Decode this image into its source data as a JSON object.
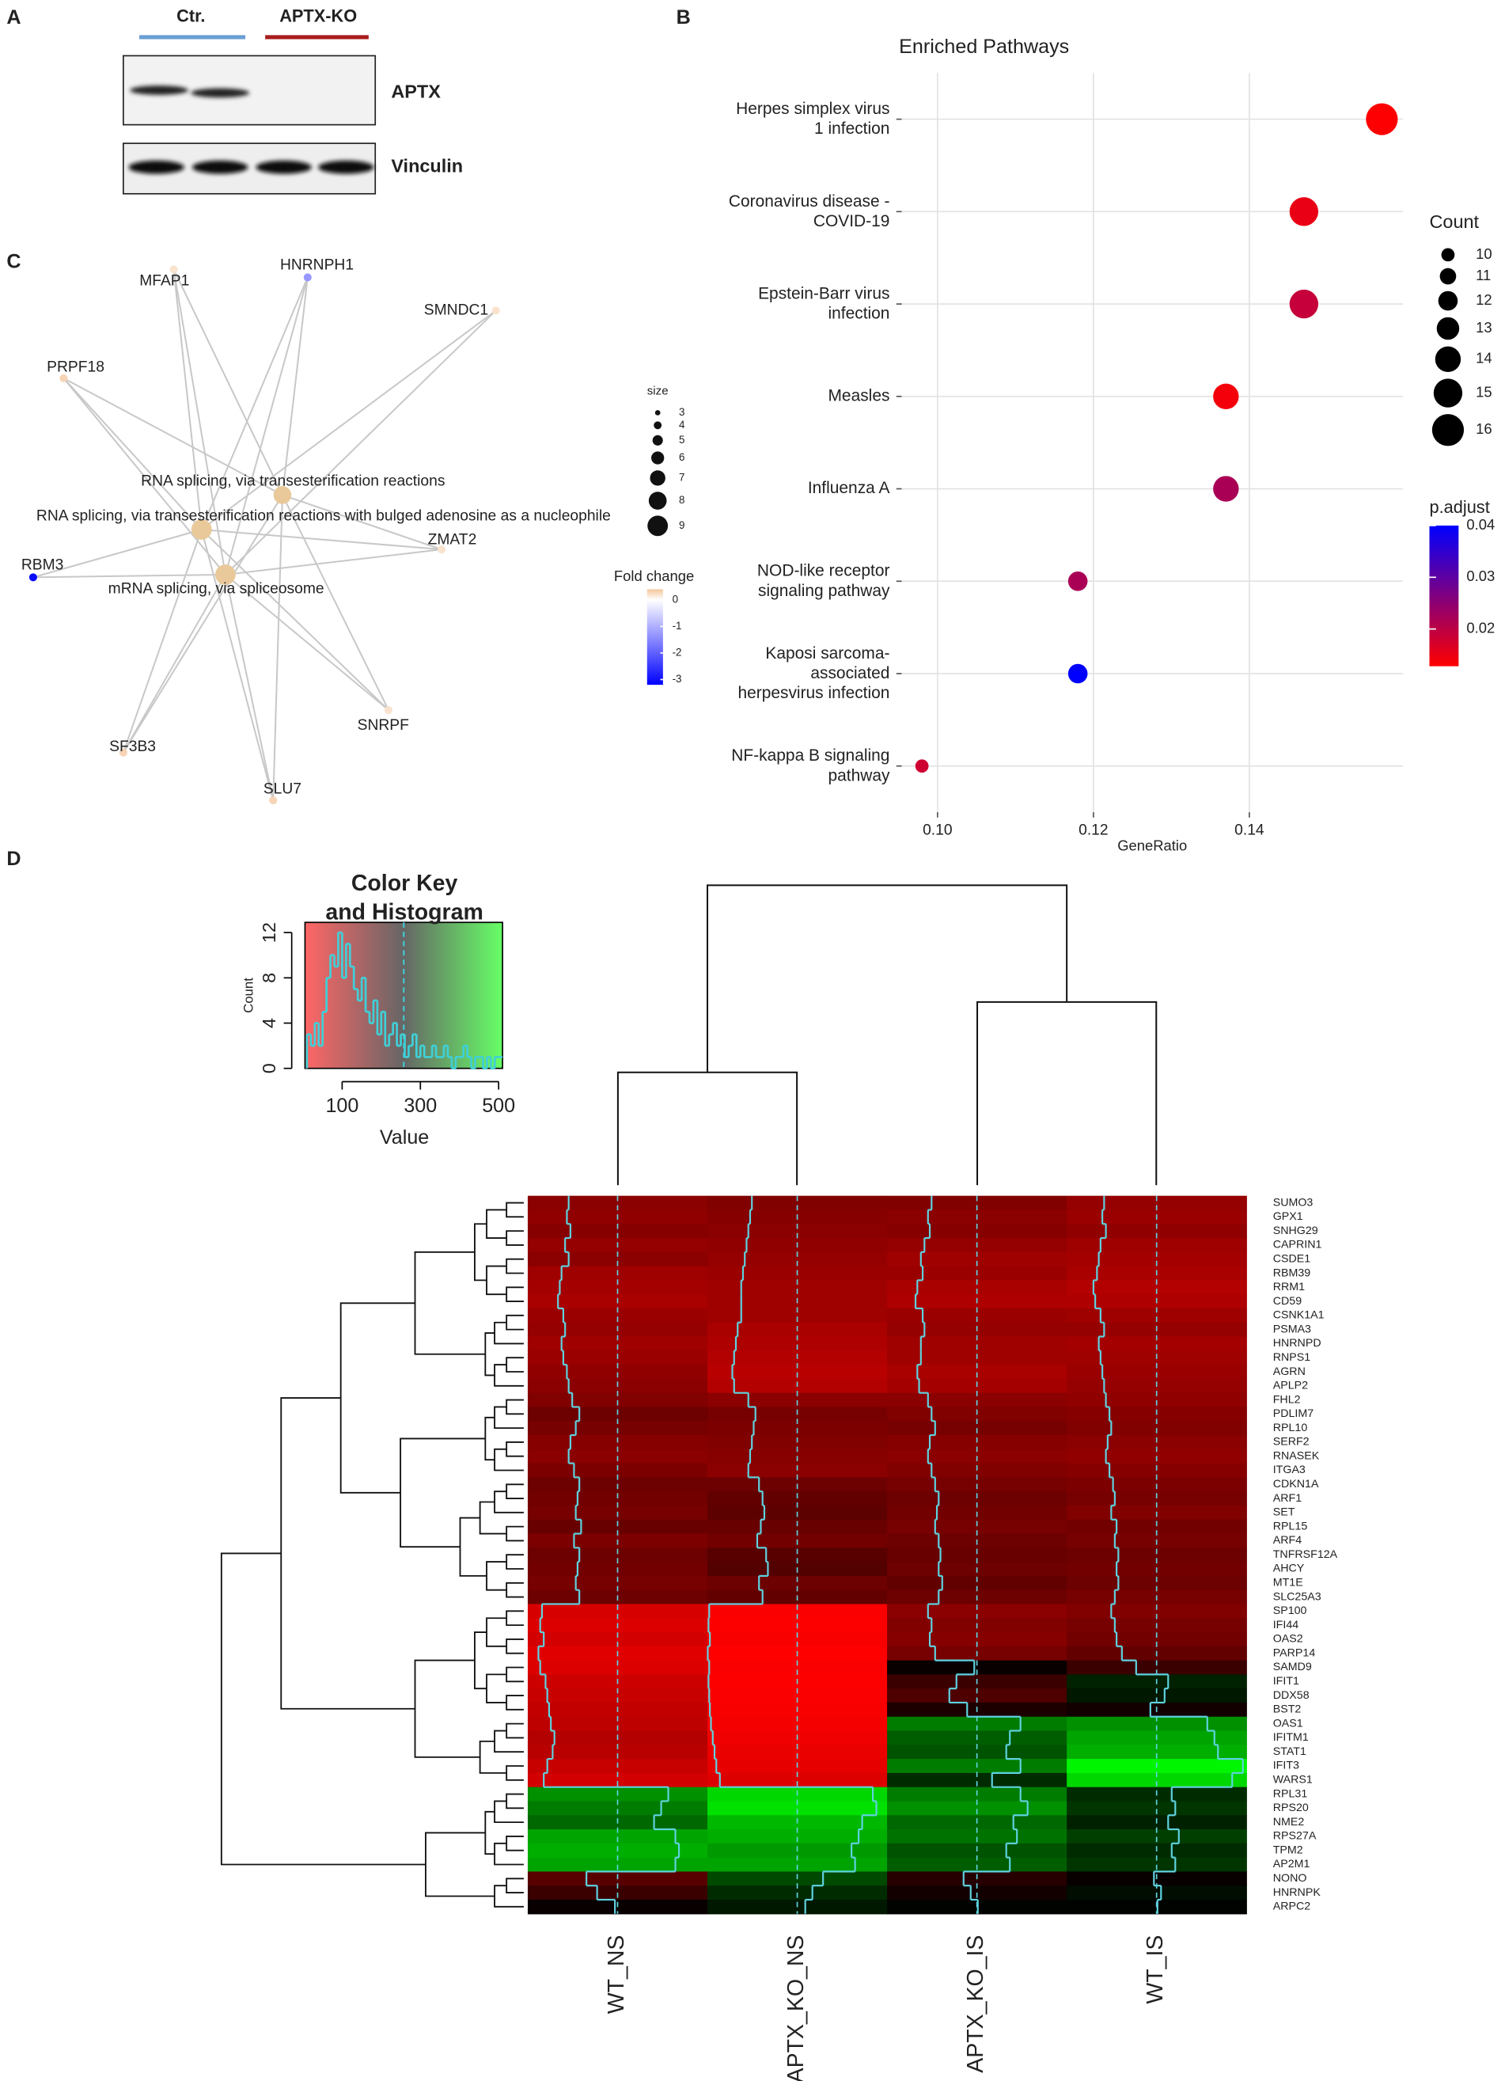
{
  "panel_labels": [
    "A",
    "B",
    "C",
    "D"
  ],
  "western_blot": {
    "groups": [
      "Ctr.",
      "APTX-KO"
    ],
    "proteins": [
      "APTX",
      "Vinculin"
    ]
  },
  "network": {
    "term_color": "#e9c99a",
    "terms": [
      {
        "label": "RNA splicing, via transesterification reactions",
        "size": 8
      },
      {
        "label": "RNA splicing, via transesterification reactions with bulged adenosine as a nucleophile",
        "size": 9
      },
      {
        "label": "mRNA splicing, via spliceosome",
        "size": 9
      }
    ],
    "genes": [
      {
        "label": "MFAP1",
        "fold_change": 0.2
      },
      {
        "label": "HNRNPH1",
        "fold_change": -1.3
      },
      {
        "label": "SMNDC1",
        "fold_change": 0.2
      },
      {
        "label": "PRPF18",
        "fold_change": 0.3
      },
      {
        "label": "RBM3",
        "fold_change": -3.1
      },
      {
        "label": "ZMAT2",
        "fold_change": 0.2
      },
      {
        "label": "SNRPF",
        "fold_change": 0.2
      },
      {
        "label": "SF3B3",
        "fold_change": 0.3
      },
      {
        "label": "SLU7",
        "fold_change": 0.3
      }
    ],
    "size_legend": {
      "title": "size",
      "values": [
        3,
        4,
        5,
        6,
        7,
        8,
        9
      ]
    },
    "fold_legend": {
      "title": "Fold change",
      "lim": [
        -3.2,
        0.4
      ],
      "ticks": [
        0,
        -1,
        -2,
        -3
      ],
      "colors": [
        "#0000ff",
        "#ffffff",
        "#f3c69c"
      ]
    }
  },
  "chart_data": [
    {
      "type": "dot",
      "title": "Enriched Pathways",
      "xlabel": "GeneRatio",
      "categories": [
        "Herpes simplex virus\n1 infection",
        "Coronavirus disease -\nCOVID-19",
        "Epstein-Barr virus\ninfection",
        "Measles",
        "Influenza A",
        "NOD-like receptor\nsignaling pathway",
        "Kaposi sarcoma-\nassociated\nherpesvirus infection",
        "NF-kappa B signaling\npathway"
      ],
      "values": [
        0.157,
        0.147,
        0.147,
        0.137,
        0.137,
        0.118,
        0.118,
        0.098
      ],
      "sizes": [
        16,
        15,
        15,
        14,
        14,
        12,
        12,
        10
      ],
      "p_adjust": [
        0.013,
        0.015,
        0.019,
        0.014,
        0.022,
        0.022,
        0.04,
        0.018
      ],
      "xlim": [
        0.0954,
        0.1597
      ],
      "xticks": [
        {
          "value": 0.1,
          "label": "0.10"
        },
        0.12,
        0.14
      ],
      "grid": true,
      "size_legend": {
        "title": "Count",
        "values": [
          10,
          11,
          12,
          13,
          14,
          15,
          16
        ]
      },
      "color_legend": {
        "title": "p.adjust",
        "lim": [
          0.0128,
          0.04
        ],
        "ticks": [
          0.02,
          0.03,
          0.04
        ],
        "colors": [
          "#ff0000",
          "#0000ff"
        ]
      }
    },
    {
      "type": "histogram",
      "title": "Color Key\nand Histogram",
      "xlabel": "Value",
      "ylabel": "Count",
      "bins": [
        10,
        20,
        30,
        40,
        50,
        60,
        70,
        80,
        90,
        100,
        110,
        120,
        130,
        140,
        150,
        160,
        170,
        180,
        190,
        200,
        210,
        220,
        230,
        240,
        250,
        260,
        270,
        280,
        290,
        300,
        310,
        320,
        330,
        340,
        350,
        360,
        370,
        380,
        390,
        400,
        410,
        420,
        430,
        440,
        450,
        460,
        470,
        480,
        490,
        500,
        510
      ],
      "counts": [
        3,
        2,
        4,
        2,
        5,
        8,
        10,
        9,
        12,
        8,
        11,
        9,
        7,
        6,
        8,
        5,
        4,
        6,
        3,
        5,
        2,
        3,
        4,
        2,
        3,
        1,
        2,
        3,
        1,
        2,
        1,
        1,
        2,
        1,
        1,
        2,
        1,
        0,
        1,
        1,
        2,
        1,
        0,
        1,
        1,
        0,
        1,
        0,
        1,
        1
      ],
      "xlim": [
        5,
        510
      ],
      "xticks": [
        100,
        300,
        500
      ],
      "ylim": [
        0,
        12.9
      ],
      "yticks": [
        0,
        4,
        8,
        12
      ],
      "color": "#3fd0d8"
    },
    {
      "type": "heatmap",
      "rows": [
        "SUMO3",
        "GPX1",
        "SNHG29",
        "CAPRIN1",
        "CSDE1",
        "RBM39",
        "RRM1",
        "CD59",
        "CSNK1A1",
        "PSMA3",
        "HNRNPD",
        "RNPS1",
        "AGRN",
        "APLP2",
        "FHL2",
        "PDLIM7",
        "RPL10",
        "SERF2",
        "RNASEK",
        "ITGA3",
        "CDKN1A",
        "ARF1",
        "SET",
        "RPL15",
        "ARF4",
        "TNFRSF12A",
        "AHCY",
        "MT1E",
        "SLC25A3",
        "SP100",
        "IFI44",
        "OAS2",
        "PARP14",
        "SAMD9",
        "IFIT1",
        "DDX58",
        "BST2",
        "OAS1",
        "IFITM1",
        "STAT1",
        "IFIT3",
        "WARS1",
        "RPL31",
        "RPS20",
        "NME2",
        "RPS27A",
        "TPM2",
        "AP2M1",
        "NONO",
        "HNRNPK",
        "ARPC2"
      ],
      "series": [
        {
          "name": "WT_NS",
          "values": [
            120,
            115,
            125,
            110,
            120,
            100,
            95,
            90,
            105,
            110,
            100,
            105,
            115,
            120,
            130,
            150,
            140,
            125,
            120,
            135,
            150,
            145,
            140,
            155,
            135,
            150,
            145,
            140,
            150,
            45,
            40,
            50,
            35,
            40,
            55,
            60,
            65,
            70,
            80,
            75,
            60,
            50,
            400,
            380,
            360,
            420,
            430,
            420,
            170,
            200,
            250
          ]
        },
        {
          "name": "APTX_KO_NS",
          "values": [
            130,
            125,
            120,
            115,
            110,
            105,
            100,
            100,
            100,
            90,
            85,
            80,
            75,
            80,
            120,
            140,
            135,
            130,
            125,
            120,
            150,
            160,
            165,
            155,
            145,
            170,
            175,
            150,
            160,
            10,
            8,
            12,
            6,
            10,
            8,
            10,
            12,
            15,
            20,
            25,
            30,
            40,
            470,
            480,
            440,
            430,
            410,
            420,
            330,
            300,
            280
          ]
        },
        {
          "name": "APTX_KO_IS",
          "values": [
            130,
            120,
            125,
            110,
            100,
            105,
            90,
            85,
            105,
            110,
            100,
            100,
            90,
            95,
            120,
            130,
            140,
            125,
            120,
            130,
            140,
            150,
            145,
            140,
            150,
            155,
            150,
            160,
            150,
            120,
            130,
            125,
            140,
            250,
            200,
            180,
            230,
            380,
            350,
            340,
            380,
            300,
            380,
            400,
            360,
            370,
            340,
            350,
            220,
            240,
            260
          ]
        },
        {
          "name": "WT_IS",
          "values": [
            110,
            105,
            115,
            100,
            95,
            90,
            80,
            85,
            100,
            110,
            95,
            100,
            105,
            110,
            115,
            125,
            130,
            120,
            115,
            125,
            135,
            140,
            130,
            145,
            140,
            150,
            145,
            150,
            140,
            130,
            140,
            145,
            160,
            200,
            290,
            280,
            240,
            400,
            420,
            430,
            500,
            470,
            300,
            310,
            290,
            320,
            300,
            310,
            250,
            270,
            260
          ]
        }
      ],
      "colors": [
        "#ff0000",
        "#000000",
        "#00ff00"
      ],
      "trace_color": "#5fd3e0"
    }
  ]
}
